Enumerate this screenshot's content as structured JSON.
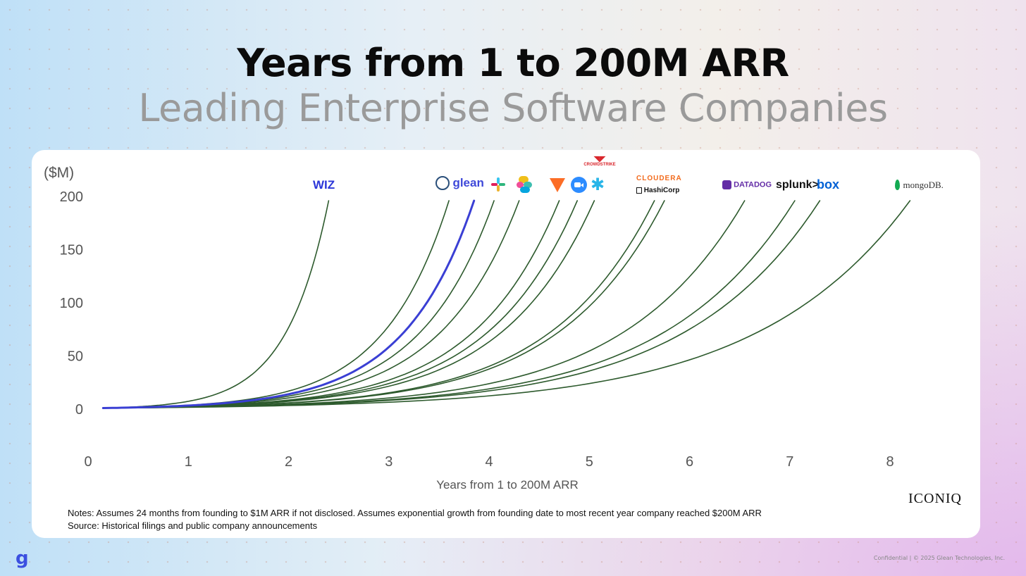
{
  "header": {
    "title": "Years from 1 to 200M ARR",
    "subtitle": "Leading Enterprise Software Companies"
  },
  "chart_data": {
    "type": "line",
    "ylabel": "($M)",
    "xlabel": "Years from 1 to 200M ARR",
    "xlim": [
      0,
      8
    ],
    "ylim": [
      0,
      200
    ],
    "x_ticks": [
      "0",
      "1",
      "2",
      "3",
      "4",
      "5",
      "6",
      "7",
      "8"
    ],
    "y_ticks": [
      "0",
      "50",
      "100",
      "150",
      "200"
    ],
    "line_color": "#2d5a2d",
    "highlight_color": "#3a3fd4",
    "series": [
      {
        "start": 0.15,
        "end": 2.4
      },
      {
        "start": 0.15,
        "end": 3.6
      },
      {
        "start": 0.15,
        "end": 3.85,
        "highlight": true
      },
      {
        "start": 0.15,
        "end": 4.05
      },
      {
        "start": 0.15,
        "end": 4.3
      },
      {
        "start": 0.15,
        "end": 4.7
      },
      {
        "start": 0.15,
        "end": 4.88
      },
      {
        "start": 0.15,
        "end": 5.05
      },
      {
        "start": 0.15,
        "end": 5.65
      },
      {
        "start": 0.15,
        "end": 5.75
      },
      {
        "start": 0.15,
        "end": 6.55
      },
      {
        "start": 0.15,
        "end": 7.05
      },
      {
        "start": 0.15,
        "end": 7.3
      },
      {
        "start": 0.15,
        "end": 8.2
      }
    ]
  },
  "logos": {
    "wiz": "WIZ",
    "glean": "glean",
    "crowdstrike": "CROWDSTRIKE",
    "cloudera": "CLOUDERA",
    "hashicorp": "HashiCorp",
    "datadog": "DATADOG",
    "splunk": "splunk>",
    "box": "box",
    "mongodb": "mongoDB."
  },
  "notes": {
    "line1": "Notes: Assumes 24 months from founding to $1M ARR if not disclosed. Assumes exponential growth from founding date to most recent year company reached $200M ARR",
    "line2": "Source: Historical filings and public company announcements"
  },
  "source_logo": "ICONIQ",
  "footer": {
    "brand": "g",
    "confidential": "Confidential | © 2025 Glean Technologies, Inc."
  }
}
